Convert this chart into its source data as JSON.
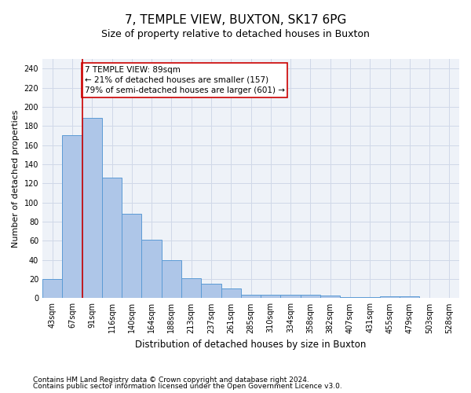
{
  "title": "7, TEMPLE VIEW, BUXTON, SK17 6PG",
  "subtitle": "Size of property relative to detached houses in Buxton",
  "xlabel": "Distribution of detached houses by size in Buxton",
  "ylabel": "Number of detached properties",
  "categories": [
    "43sqm",
    "67sqm",
    "91sqm",
    "116sqm",
    "140sqm",
    "164sqm",
    "188sqm",
    "213sqm",
    "237sqm",
    "261sqm",
    "285sqm",
    "310sqm",
    "334sqm",
    "358sqm",
    "382sqm",
    "407sqm",
    "431sqm",
    "455sqm",
    "479sqm",
    "503sqm",
    "528sqm"
  ],
  "values": [
    20,
    170,
    188,
    126,
    88,
    61,
    40,
    21,
    15,
    10,
    4,
    4,
    4,
    4,
    3,
    1,
    1,
    2,
    2,
    0,
    0
  ],
  "bar_color": "#aec6e8",
  "bar_edge_color": "#5b9bd5",
  "grid_color": "#d0d8e8",
  "background_color": "#eef2f8",
  "annotation_box_color": "#cc0000",
  "property_line_color": "#cc0000",
  "property_index": 2,
  "annotation_line1": "7 TEMPLE VIEW: 89sqm",
  "annotation_line2": "← 21% of detached houses are smaller (157)",
  "annotation_line3": "79% of semi-detached houses are larger (601) →",
  "ylim": [
    0,
    250
  ],
  "yticks": [
    0,
    20,
    40,
    60,
    80,
    100,
    120,
    140,
    160,
    180,
    200,
    220,
    240
  ],
  "footer1": "Contains HM Land Registry data © Crown copyright and database right 2024.",
  "footer2": "Contains public sector information licensed under the Open Government Licence v3.0.",
  "title_fontsize": 11,
  "subtitle_fontsize": 9,
  "annotation_fontsize": 7.5,
  "tick_fontsize": 7,
  "ylabel_fontsize": 8,
  "xlabel_fontsize": 8.5,
  "footer_fontsize": 6.5
}
